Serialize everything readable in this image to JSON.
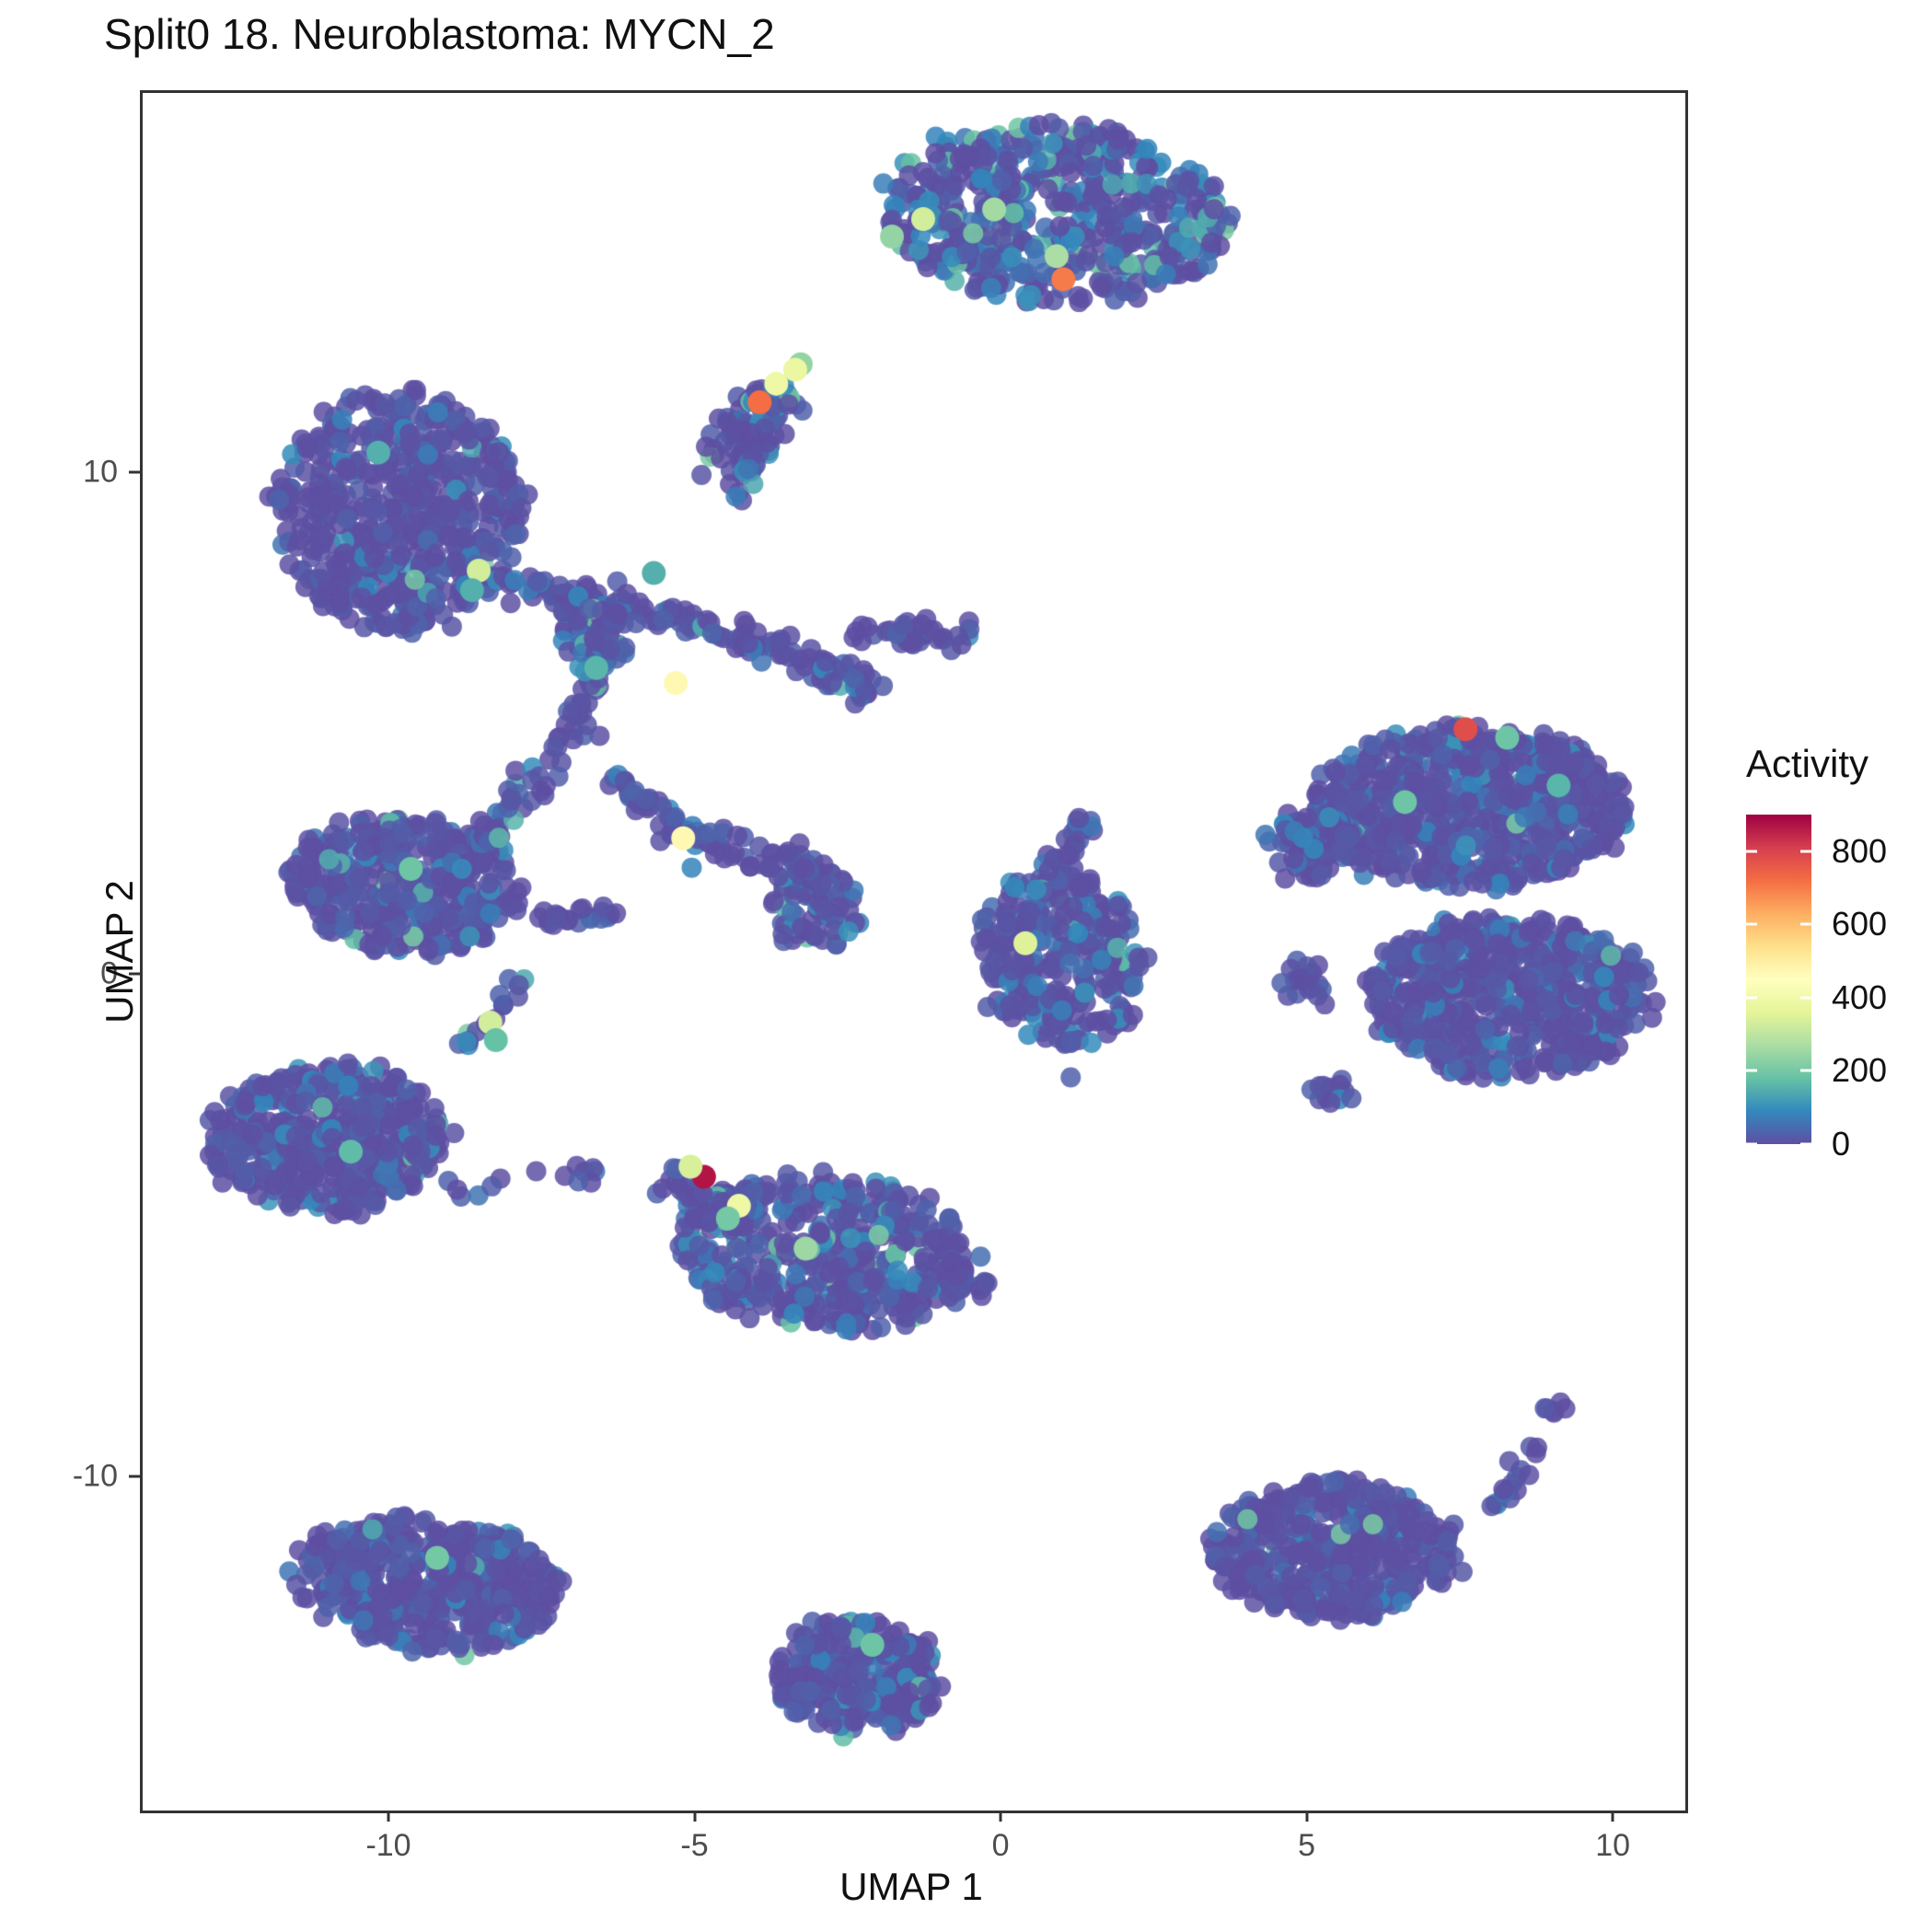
{
  "chart_data": {
    "type": "scatter",
    "title": "Split0 18. Neuroblastoma: MYCN_2",
    "xlabel": "UMAP 1",
    "ylabel": "UMAP 2",
    "xlim": [
      -14.06,
      11.14
    ],
    "ylim": [
      -16.6,
      17.6
    ],
    "x_ticks": [
      -10,
      -5,
      0,
      5,
      10
    ],
    "y_ticks": [
      -10,
      0,
      10
    ],
    "grid": false,
    "background": "#ffffff",
    "panel_border_color": "#333333",
    "tick_label_color": "#4d4d4d",
    "point_radius_px": 11,
    "highlight_radius_px": 13,
    "point_alpha": 0.85,
    "colormap": {
      "name": "spectral_reversed",
      "domain": [
        0,
        900
      ],
      "stops": [
        "#5E4FA2",
        "#3288BD",
        "#66C2A5",
        "#ABDDA4",
        "#E6F598",
        "#FFFFBF",
        "#FEE08B",
        "#FDAE61",
        "#F46D43",
        "#D53E4F",
        "#9E0142"
      ]
    },
    "legend": {
      "title": "Activity",
      "ticks": [
        0,
        200,
        400,
        600,
        800
      ]
    },
    "clusters": [
      {
        "name": "top-main",
        "cx": 0.87,
        "cy": 15.2,
        "rx": 2.85,
        "ry": 1.8,
        "rot": -8,
        "n": 520,
        "blue": 0.25,
        "teal": 0.1
      },
      {
        "name": "top-small-comma",
        "cx": -4.14,
        "cy": 10.9,
        "rx": 0.52,
        "ry": 1.05,
        "rot": -35,
        "n": 80,
        "blue": 0.2,
        "teal": 0.04
      },
      {
        "name": "left-round",
        "cx": -9.85,
        "cy": 9.25,
        "rx": 2.0,
        "ry": 2.4,
        "rot": 0,
        "n": 560,
        "blue": 0.07,
        "teal": 0.012
      },
      {
        "name": "web-blob-a",
        "cx": -6.7,
        "cy": 6.75,
        "rx": 0.55,
        "ry": 0.55,
        "rot": 0,
        "n": 45,
        "blue": 0.2,
        "teal": 0.06
      },
      {
        "name": "web-blob-b",
        "cx": -3.1,
        "cy": 1.4,
        "rx": 0.7,
        "ry": 0.8,
        "rot": 0,
        "n": 75,
        "blue": 0.2,
        "teal": 0.05
      },
      {
        "name": "left-wing",
        "cx": -9.8,
        "cy": 1.85,
        "rx": 1.95,
        "ry": 1.35,
        "rot": -12,
        "n": 380,
        "blue": 0.12,
        "teal": 0.03
      },
      {
        "name": "left-arrow",
        "cx": -11.05,
        "cy": -3.25,
        "rx": 1.95,
        "ry": 1.45,
        "rot": 0,
        "n": 430,
        "blue": 0.1,
        "teal": 0.02
      },
      {
        "name": "mid-south",
        "cx": -2.9,
        "cy": -5.5,
        "rx": 2.4,
        "ry": 1.55,
        "rot": -6,
        "n": 470,
        "blue": 0.18,
        "teal": 0.07
      },
      {
        "name": "center-small",
        "cx": 0.95,
        "cy": 0.35,
        "rx": 1.35,
        "ry": 1.75,
        "rot": 10,
        "n": 270,
        "blue": 0.15,
        "teal": 0.04
      },
      {
        "name": "right-upper",
        "cx": 7.6,
        "cy": 3.4,
        "rx": 2.55,
        "ry": 1.6,
        "rot": 0,
        "n": 680,
        "blue": 0.13,
        "teal": 0.02
      },
      {
        "name": "right-upper-arm",
        "cx": 5.0,
        "cy": 2.65,
        "rx": 0.75,
        "ry": 0.6,
        "rot": 20,
        "n": 70,
        "blue": 0.1,
        "teal": 0.0
      },
      {
        "name": "right-lower",
        "cx": 8.25,
        "cy": -0.4,
        "rx": 2.3,
        "ry": 1.6,
        "rot": 0,
        "n": 600,
        "blue": 0.1,
        "teal": 0.01
      },
      {
        "name": "right-lower-sat-a",
        "cx": 4.9,
        "cy": -0.1,
        "rx": 0.4,
        "ry": 0.35,
        "rot": 0,
        "n": 18,
        "blue": 0.05,
        "teal": 0.0
      },
      {
        "name": "right-lower-sat-b",
        "cx": 5.45,
        "cy": -2.25,
        "rx": 0.35,
        "ry": 0.3,
        "rot": 0,
        "n": 12,
        "blue": 0.05,
        "teal": 0.0
      },
      {
        "name": "bottom-left",
        "cx": -9.4,
        "cy": -12.1,
        "rx": 2.15,
        "ry": 1.3,
        "rot": -8,
        "n": 420,
        "blue": 0.1,
        "teal": 0.02
      },
      {
        "name": "bottom-mid",
        "cx": -2.4,
        "cy": -13.95,
        "rx": 1.35,
        "ry": 1.1,
        "rot": 0,
        "n": 270,
        "blue": 0.12,
        "teal": 0.03
      },
      {
        "name": "bottom-right-triangle",
        "cx": 5.4,
        "cy": -11.4,
        "rx": 1.95,
        "ry": 1.35,
        "rot": 0,
        "n": 440,
        "blue": 0.08,
        "teal": 0.01
      },
      {
        "name": "bottom-right-sat",
        "cx": 8.95,
        "cy": -8.6,
        "rx": 0.28,
        "ry": 0.25,
        "rot": 0,
        "n": 6,
        "blue": 0.0,
        "teal": 0.0
      }
    ],
    "strands": [
      {
        "name": "web-top-left",
        "x1": -8.3,
        "y1": 7.8,
        "x2": -4.9,
        "y2": 7.05,
        "w": 0.35,
        "n": 85
      },
      {
        "name": "web-top-right",
        "x1": -4.9,
        "y1": 7.05,
        "x2": -2.0,
        "y2": 5.65,
        "w": 0.4,
        "n": 75
      },
      {
        "name": "web-vertical",
        "x1": -6.4,
        "y1": 6.7,
        "x2": -7.35,
        "y2": 4.3,
        "w": 0.3,
        "n": 45
      },
      {
        "name": "web-to-wing",
        "x1": -7.35,
        "y1": 4.3,
        "x2": -9.05,
        "y2": 1.75,
        "w": 0.28,
        "n": 50
      },
      {
        "name": "web-mid-a",
        "x1": -6.4,
        "y1": 3.95,
        "x2": -5.25,
        "y2": 2.8,
        "w": 0.3,
        "n": 35
      },
      {
        "name": "web-mid-b",
        "x1": -5.25,
        "y1": 2.8,
        "x2": -2.75,
        "y2": 1.9,
        "w": 0.35,
        "n": 55
      },
      {
        "name": "web-finger-right",
        "x1": -2.5,
        "y1": 6.95,
        "x2": -0.5,
        "y2": 6.75,
        "w": 0.3,
        "n": 35
      },
      {
        "name": "comma-tail",
        "x1": -4.35,
        "y1": 9.5,
        "x2": -4.05,
        "y2": 10.4,
        "w": 0.18,
        "n": 14
      },
      {
        "name": "wing-extension",
        "x1": -7.7,
        "y1": 1.2,
        "x2": -6.3,
        "y2": 1.2,
        "w": 0.25,
        "n": 22
      },
      {
        "name": "wing-connector",
        "x1": -7.8,
        "y1": 0.1,
        "x2": -8.85,
        "y2": -1.6,
        "w": 0.2,
        "n": 16
      },
      {
        "name": "arrow-chain",
        "x1": -9.1,
        "y1": -4.2,
        "x2": -6.6,
        "y2": -3.9,
        "w": 0.25,
        "n": 14
      },
      {
        "name": "mid-south-nose",
        "x1": -5.6,
        "y1": -4.05,
        "x2": -4.15,
        "y2": -4.85,
        "w": 0.3,
        "n": 45
      },
      {
        "name": "mid-south-tail",
        "x1": -1.1,
        "y1": -5.7,
        "x2": -0.25,
        "y2": -6.2,
        "w": 0.22,
        "n": 18
      },
      {
        "name": "center-small-chain",
        "x1": 0.7,
        "y1": 2.1,
        "x2": 1.45,
        "y2": 3.1,
        "w": 0.25,
        "n": 22
      },
      {
        "name": "bottom-right-chain",
        "x1": 7.9,
        "y1": -10.6,
        "x2": 9.05,
        "y2": -9.2,
        "w": 0.28,
        "n": 16
      }
    ],
    "singles": [
      [
        -7.55,
        3.7
      ],
      [
        -7.3,
        -12.0
      ],
      [
        7.5,
        -11.85
      ],
      [
        1.1,
        -2.0
      ]
    ],
    "highlights": [
      {
        "x": -1.82,
        "y": 14.74,
        "activity": 240
      },
      {
        "x": -1.31,
        "y": 15.09,
        "activity": 330
      },
      {
        "x": -0.15,
        "y": 15.28,
        "activity": 260
      },
      {
        "x": 0.87,
        "y": 14.35,
        "activity": 270
      },
      {
        "x": 0.98,
        "y": 13.89,
        "activity": 700
      },
      {
        "x": -3.31,
        "y": 12.2,
        "activity": 240
      },
      {
        "x": -3.4,
        "y": 12.09,
        "activity": 380
      },
      {
        "x": -3.71,
        "y": 11.81,
        "activity": 390
      },
      {
        "x": -3.98,
        "y": 11.44,
        "activity": 720
      },
      {
        "x": -10.21,
        "y": 10.44,
        "activity": 150
      },
      {
        "x": -8.57,
        "y": 8.09,
        "activity": 330
      },
      {
        "x": -8.68,
        "y": 7.7,
        "activity": 150
      },
      {
        "x": -6.65,
        "y": 6.15,
        "activity": 160
      },
      {
        "x": -5.71,
        "y": 8.04,
        "activity": 150
      },
      {
        "x": -5.35,
        "y": 5.85,
        "activity": 470
      },
      {
        "x": -5.23,
        "y": 2.76,
        "activity": 470
      },
      {
        "x": -9.68,
        "y": 2.15,
        "activity": 190
      },
      {
        "x": -8.38,
        "y": -0.91,
        "activity": 330
      },
      {
        "x": -8.29,
        "y": -1.26,
        "activity": 180
      },
      {
        "x": -10.66,
        "y": -3.48,
        "activity": 170
      },
      {
        "x": -4.89,
        "y": -3.98,
        "activity": 870
      },
      {
        "x": -5.11,
        "y": -3.78,
        "activity": 340
      },
      {
        "x": -4.32,
        "y": -4.56,
        "activity": 390
      },
      {
        "x": -4.5,
        "y": -4.81,
        "activity": 200
      },
      {
        "x": -3.23,
        "y": -5.41,
        "activity": 250
      },
      {
        "x": 0.36,
        "y": 0.67,
        "activity": 350
      },
      {
        "x": 7.55,
        "y": 4.93,
        "activity": 780
      },
      {
        "x": 8.23,
        "y": 4.76,
        "activity": 190
      },
      {
        "x": 6.56,
        "y": 3.48,
        "activity": 190
      },
      {
        "x": 9.07,
        "y": 3.81,
        "activity": 160
      },
      {
        "x": -9.25,
        "y": -11.57,
        "activity": 200
      },
      {
        "x": -2.14,
        "y": -13.3,
        "activity": 190
      }
    ]
  }
}
